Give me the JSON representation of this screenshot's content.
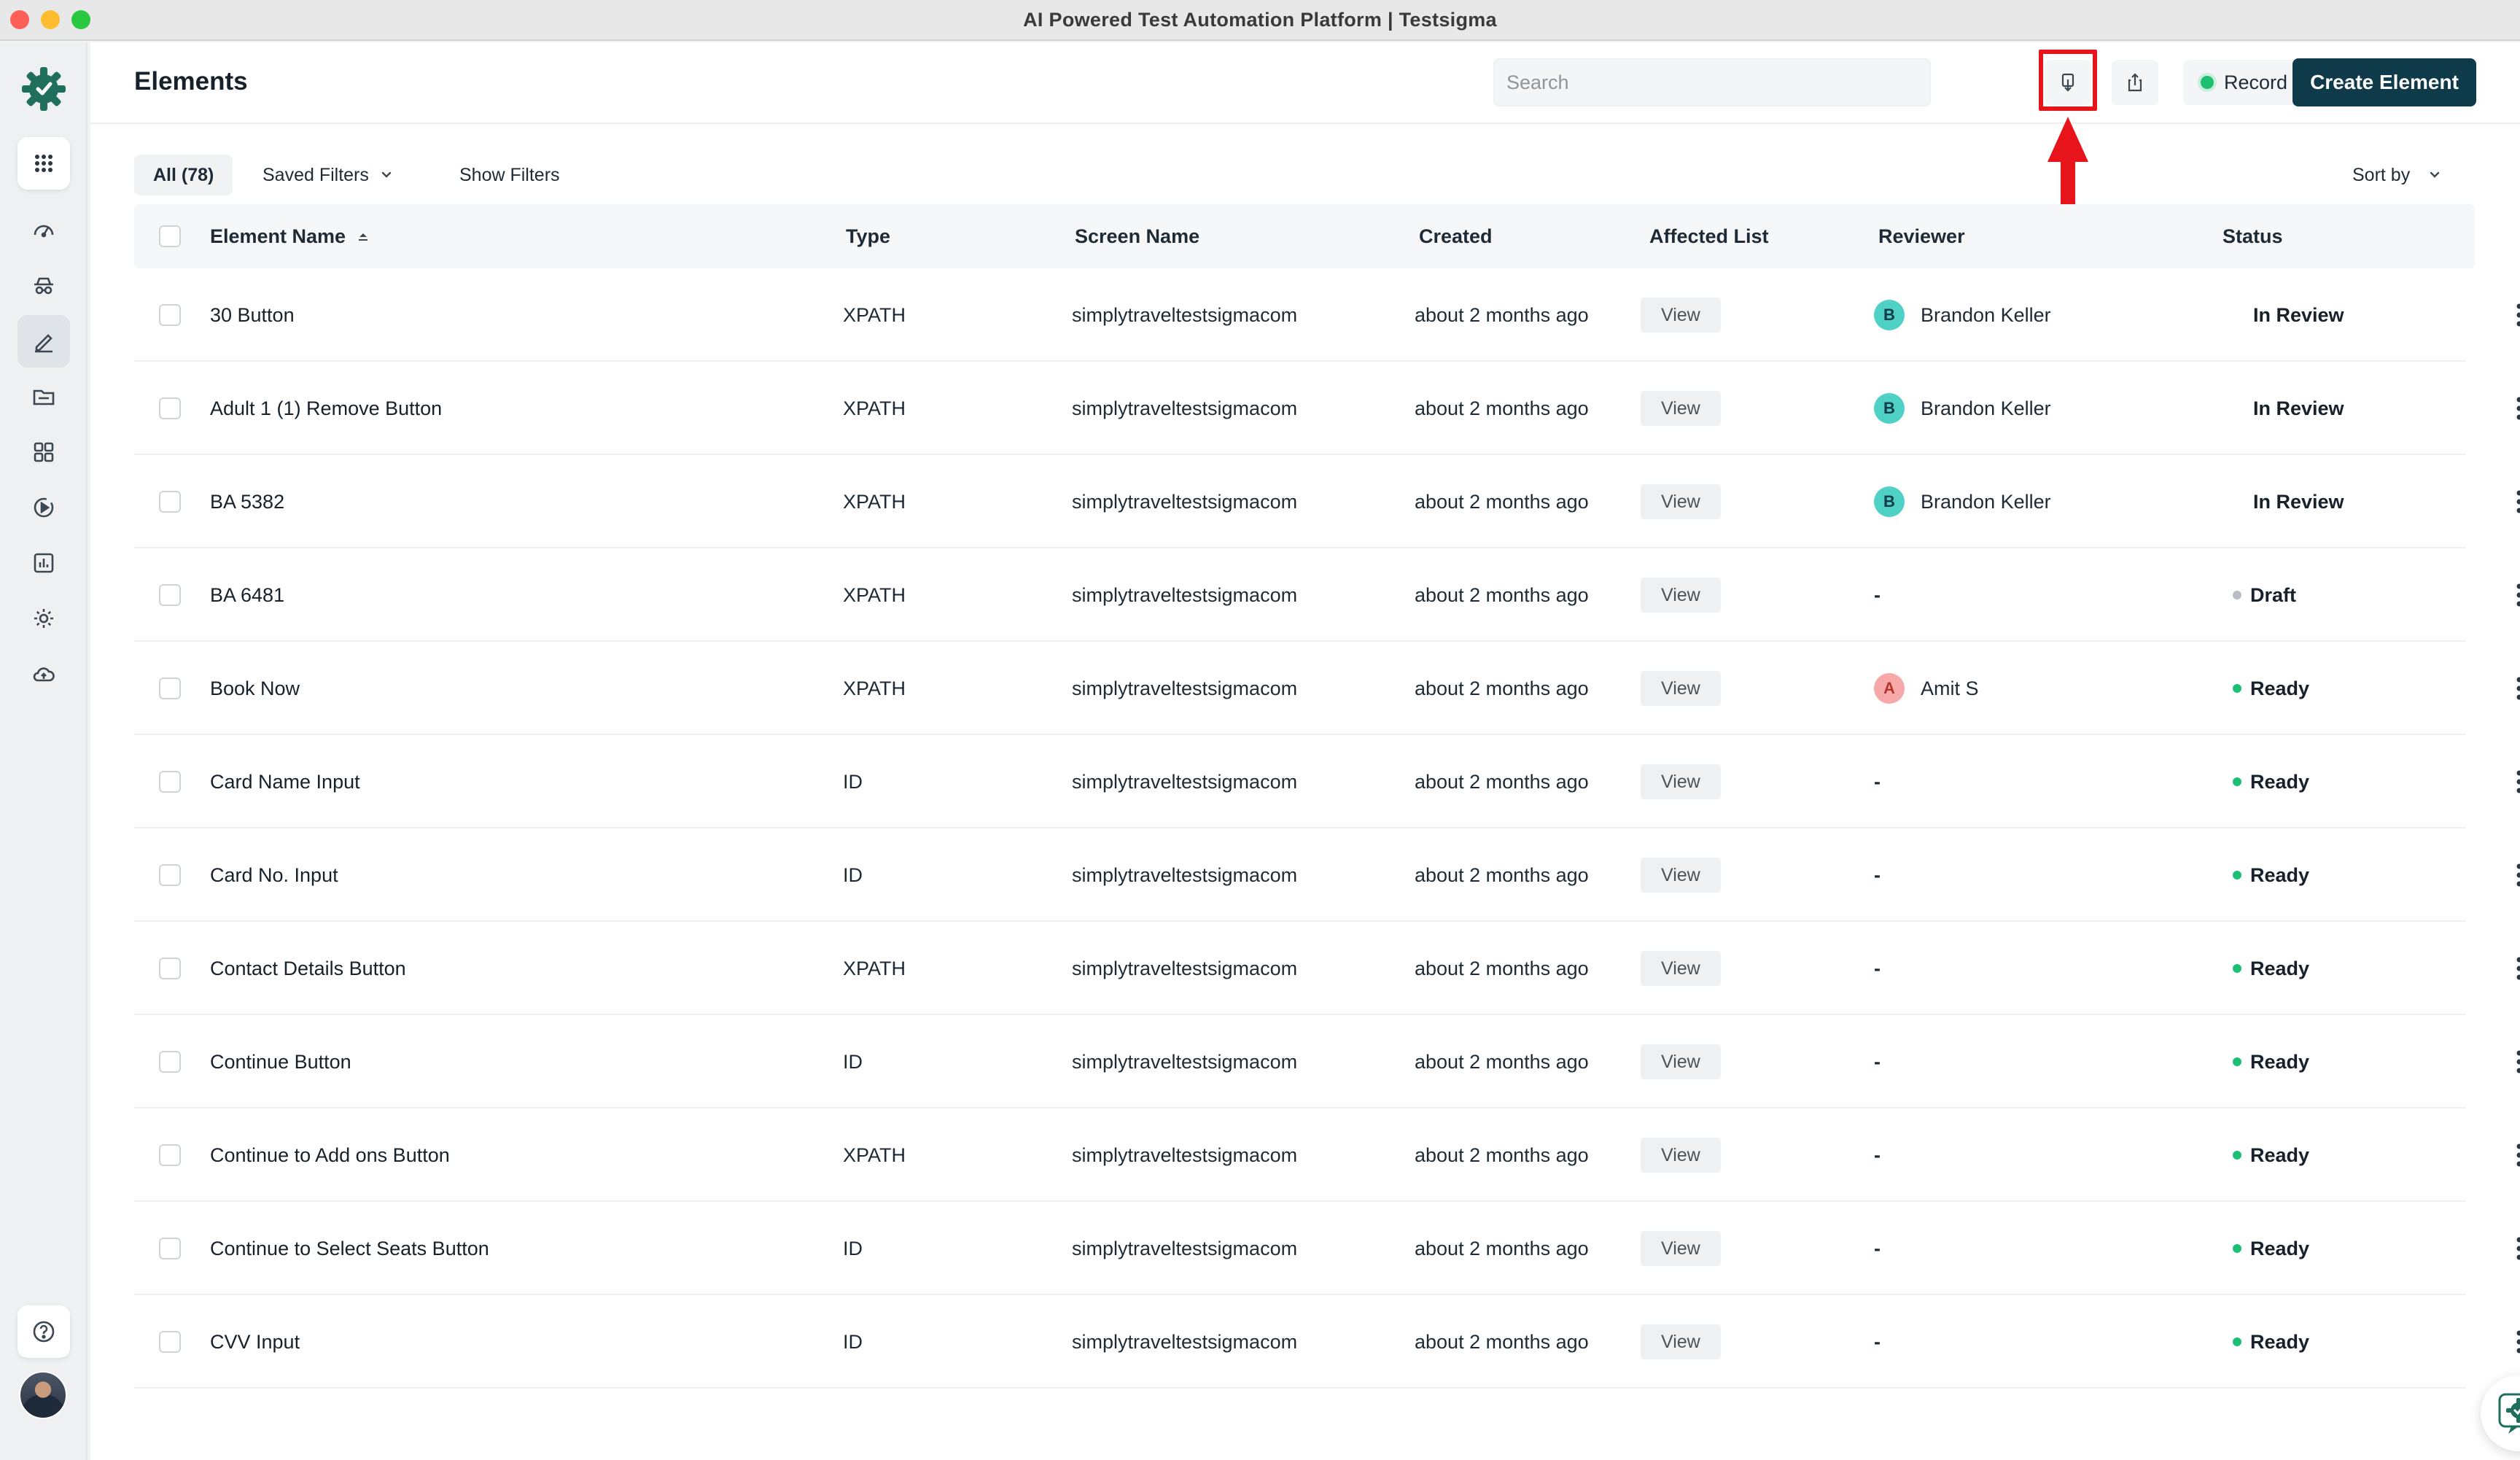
{
  "window": {
    "title": "AI Powered Test Automation Platform | Testsigma"
  },
  "rail": {
    "items": [
      {
        "icon": "apps-grid-icon"
      },
      {
        "icon": "dashboard-icon"
      },
      {
        "icon": "incognito-icon"
      },
      {
        "icon": "pencil-icon"
      },
      {
        "icon": "folder-icon"
      },
      {
        "icon": "grid-icon"
      },
      {
        "icon": "play-circle-icon"
      },
      {
        "icon": "report-chart-icon"
      },
      {
        "icon": "gear-icon"
      },
      {
        "icon": "cloud-upload-icon"
      },
      {
        "icon": "help-icon"
      }
    ]
  },
  "header": {
    "title": "Elements",
    "search_placeholder": "Search",
    "record_label": "Record",
    "create_label": "Create Element"
  },
  "toolbar": {
    "all_label": "All (78)",
    "saved_filters_label": "Saved Filters",
    "show_filters_label": "Show Filters",
    "sort_by_label": "Sort by"
  },
  "table": {
    "columns": [
      "Element Name",
      "Type",
      "Screen Name",
      "Created",
      "Affected List",
      "Reviewer",
      "Status"
    ],
    "view_label": "View",
    "rows": [
      {
        "name": "30 Button",
        "type": "XPATH",
        "screen": "simplytraveltestsigmacom",
        "created": "about 2 months ago",
        "reviewer": "Brandon Keller",
        "reviewer_initial": "B",
        "status": "In Review"
      },
      {
        "name": "Adult 1 (1) Remove Button",
        "type": "XPATH",
        "screen": "simplytraveltestsigmacom",
        "created": "about 2 months ago",
        "reviewer": "Brandon Keller",
        "reviewer_initial": "B",
        "status": "In Review"
      },
      {
        "name": "BA 5382",
        "type": "XPATH",
        "screen": "simplytraveltestsigmacom",
        "created": "about 2 months ago",
        "reviewer": "Brandon Keller",
        "reviewer_initial": "B",
        "status": "In Review"
      },
      {
        "name": "BA 6481",
        "type": "XPATH",
        "screen": "simplytraveltestsigmacom",
        "created": "about 2 months ago",
        "reviewer": "-",
        "reviewer_initial": "",
        "status": "Draft"
      },
      {
        "name": "Book Now",
        "type": "XPATH",
        "screen": "simplytraveltestsigmacom",
        "created": "about 2 months ago",
        "reviewer": "Amit S",
        "reviewer_initial": "A",
        "status": "Ready"
      },
      {
        "name": "Card Name Input",
        "type": "ID",
        "screen": "simplytraveltestsigmacom",
        "created": "about 2 months ago",
        "reviewer": "-",
        "reviewer_initial": "",
        "status": "Ready"
      },
      {
        "name": "Card No. Input",
        "type": "ID",
        "screen": "simplytraveltestsigmacom",
        "created": "about 2 months ago",
        "reviewer": "-",
        "reviewer_initial": "",
        "status": "Ready"
      },
      {
        "name": "Contact Details Button",
        "type": "XPATH",
        "screen": "simplytraveltestsigmacom",
        "created": "about 2 months ago",
        "reviewer": "-",
        "reviewer_initial": "",
        "status": "Ready"
      },
      {
        "name": "Continue Button",
        "type": "ID",
        "screen": "simplytraveltestsigmacom",
        "created": "about 2 months ago",
        "reviewer": "-",
        "reviewer_initial": "",
        "status": "Ready"
      },
      {
        "name": "Continue to Add ons Button",
        "type": "XPATH",
        "screen": "simplytraveltestsigmacom",
        "created": "about 2 months ago",
        "reviewer": "-",
        "reviewer_initial": "",
        "status": "Ready"
      },
      {
        "name": "Continue to Select Seats Button",
        "type": "ID",
        "screen": "simplytraveltestsigmacom",
        "created": "about 2 months ago",
        "reviewer": "-",
        "reviewer_initial": "",
        "status": "Ready"
      },
      {
        "name": "CVV Input",
        "type": "ID",
        "screen": "simplytraveltestsigmacom",
        "created": "about 2 months ago",
        "reviewer": "-",
        "reviewer_initial": "",
        "status": "Ready"
      }
    ]
  },
  "colors": {
    "brand_dark": "#0f3a4a",
    "brand_green": "#1f6f5c",
    "ready_dot": "#1fbf73",
    "draft_dot": "#b8bec4",
    "highlight": "#e8141c",
    "avatar_b_bg": "#4fd1c5",
    "avatar_a_bg": "#f7a8a8"
  }
}
